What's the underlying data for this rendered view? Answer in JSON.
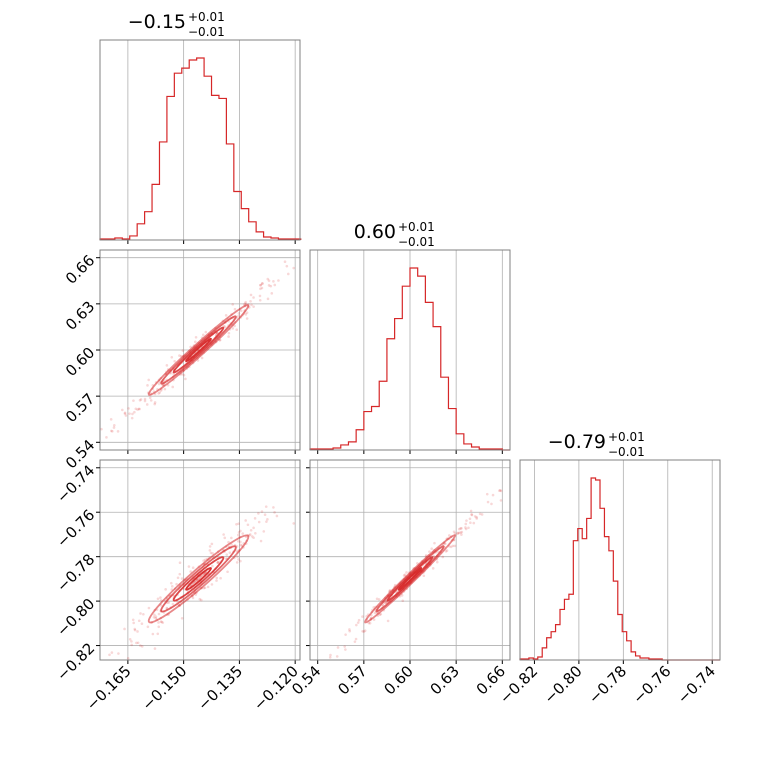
{
  "chart_data": {
    "type": "corner",
    "color": "#d62728",
    "grid": true,
    "parameters": [
      {
        "title": {
          "value": "−0.15",
          "plus": "+0.01",
          "minus": "−0.01"
        },
        "ticks": [
          -0.165,
          -0.15,
          -0.135,
          -0.12
        ],
        "tick_labels": [
          "−0.165",
          "−0.150",
          "−0.135",
          "−0.120"
        ],
        "range": [
          -0.1725,
          -0.1187
        ]
      },
      {
        "title": {
          "value": "0.60",
          "plus": "+0.01",
          "minus": "−0.01"
        },
        "ticks": [
          0.54,
          0.57,
          0.6,
          0.63,
          0.66
        ],
        "tick_labels": [
          "0.54",
          "0.57",
          "0.60",
          "0.63",
          "0.66"
        ],
        "range": [
          0.535,
          0.665
        ]
      },
      {
        "title": {
          "value": "−0.79",
          "plus": "+0.01",
          "minus": "−0.01"
        },
        "ticks": [
          -0.82,
          -0.8,
          -0.78,
          -0.76,
          -0.74
        ],
        "tick_labels": [
          "−0.82",
          "−0.80",
          "−0.78",
          "−0.76",
          "−0.74"
        ],
        "range": [
          -0.8265,
          -0.7365
        ]
      }
    ],
    "histograms": [
      {
        "parameter": 0,
        "bin_edges": [
          -0.1725,
          -0.1705,
          -0.1685,
          -0.1665,
          -0.1645,
          -0.1625,
          -0.1605,
          -0.1585,
          -0.1565,
          -0.1545,
          -0.1525,
          -0.1505,
          -0.1485,
          -0.1465,
          -0.1445,
          -0.1425,
          -0.1405,
          -0.1385,
          -0.1365,
          -0.1345,
          -0.1325,
          -0.1305,
          -0.1285,
          -0.1265,
          -0.1245,
          -0.1225,
          -0.1205,
          -0.1185
        ],
        "counts": [
          1,
          1,
          2,
          1,
          4,
          16,
          28,
          55,
          97,
          142,
          165,
          170,
          178,
          180,
          162,
          143,
          140,
          95,
          48,
          31,
          18,
          8,
          3,
          2,
          1,
          1,
          1
        ]
      },
      {
        "parameter": 1,
        "bin_edges": [
          0.535,
          0.54,
          0.545,
          0.55,
          0.555,
          0.56,
          0.565,
          0.57,
          0.575,
          0.58,
          0.585,
          0.59,
          0.595,
          0.6,
          0.605,
          0.61,
          0.615,
          0.62,
          0.625,
          0.63,
          0.635,
          0.64,
          0.645,
          0.65,
          0.655,
          0.66,
          0.665
        ],
        "counts": [
          1,
          1,
          1,
          2,
          5,
          8,
          20,
          38,
          43,
          68,
          110,
          130,
          162,
          180,
          172,
          146,
          122,
          72,
          41,
          16,
          6,
          3,
          1,
          1,
          1,
          0
        ]
      },
      {
        "parameter": 2,
        "bin_edges": [
          -0.8265,
          -0.8245,
          -0.8225,
          -0.8205,
          -0.8185,
          -0.8165,
          -0.8145,
          -0.8125,
          -0.8105,
          -0.8085,
          -0.8065,
          -0.8045,
          -0.8025,
          -0.8005,
          -0.7985,
          -0.7965,
          -0.7945,
          -0.7925,
          -0.7905,
          -0.7885,
          -0.7865,
          -0.7845,
          -0.7825,
          -0.7805,
          -0.7785,
          -0.7765,
          -0.7745,
          -0.7725,
          -0.7705,
          -0.7685,
          -0.7665,
          -0.7645,
          -0.7625,
          -0.7605,
          -0.7585,
          -0.7565,
          -0.7545,
          -0.7525,
          -0.7505,
          -0.7485,
          -0.7465,
          -0.7445,
          -0.7425,
          -0.7405,
          -0.7385,
          -0.7365
        ],
        "counts": [
          1,
          1,
          2,
          1,
          3,
          12,
          22,
          28,
          35,
          50,
          60,
          65,
          118,
          130,
          120,
          140,
          180,
          178,
          150,
          122,
          108,
          78,
          45,
          28,
          19,
          8,
          4,
          2,
          2,
          1,
          1,
          1,
          0,
          0,
          0,
          0,
          0,
          0,
          0,
          0,
          0,
          0,
          0,
          0,
          0
        ]
      }
    ],
    "correlations": [
      {
        "x": 0,
        "y": 1,
        "mean": [
          -0.146,
          0.6
        ],
        "sigma": [
          0.0067,
          0.0146
        ],
        "rho": 0.985
      },
      {
        "x": 0,
        "y": 2,
        "mean": [
          -0.146,
          -0.79
        ],
        "sigma": [
          0.0067,
          0.0098
        ],
        "rho": 0.965
      },
      {
        "x": 1,
        "y": 2,
        "mean": [
          0.6,
          -0.79
        ],
        "sigma": [
          0.0146,
          0.0098
        ],
        "rho": 0.99
      }
    ]
  }
}
